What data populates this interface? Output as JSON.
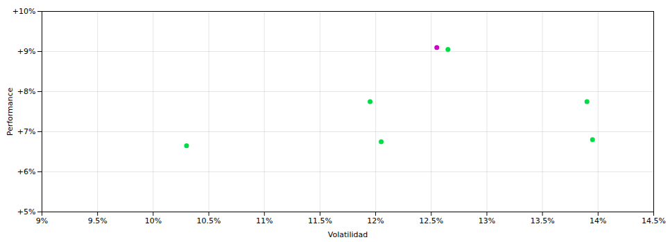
{
  "chart_data": {
    "type": "scatter",
    "xlabel": "Volatilidad",
    "ylabel": "Performance",
    "series": [
      {
        "color": "#00dd44",
        "x": [
          0.103,
          0.1195,
          0.1205,
          0.1265,
          0.139,
          0.1395
        ],
        "values": [
          0.0665,
          0.0775,
          0.0675,
          0.0905,
          0.0775,
          0.068
        ]
      },
      {
        "color": "#cc00cc",
        "x": [
          0.1255
        ],
        "values": [
          0.091
        ]
      }
    ],
    "xlim": [
      0.09,
      0.145
    ],
    "ylim": [
      0.05,
      0.1
    ],
    "xticks": [
      {
        "value": 0.09,
        "label": "9%"
      },
      {
        "value": 0.095,
        "label": "9.5%"
      },
      {
        "value": 0.1,
        "label": "10%"
      },
      {
        "value": 0.105,
        "label": "10.5%"
      },
      {
        "value": 0.11,
        "label": "11%"
      },
      {
        "value": 0.115,
        "label": "11.5%"
      },
      {
        "value": 0.12,
        "label": "12%"
      },
      {
        "value": 0.125,
        "label": "12.5%"
      },
      {
        "value": 0.13,
        "label": "13%"
      },
      {
        "value": 0.135,
        "label": "13.5%"
      },
      {
        "value": 0.14,
        "label": "14%"
      },
      {
        "value": 0.145,
        "label": "14.5%"
      }
    ],
    "yticks": [
      {
        "value": 0.05,
        "label": "+5%"
      },
      {
        "value": 0.06,
        "label": "+6%"
      },
      {
        "value": 0.07,
        "label": "+7%"
      },
      {
        "value": 0.08,
        "label": "+8%"
      },
      {
        "value": 0.09,
        "label": "+9%"
      },
      {
        "value": 0.1,
        "label": "+10%"
      }
    ],
    "grid": true
  }
}
